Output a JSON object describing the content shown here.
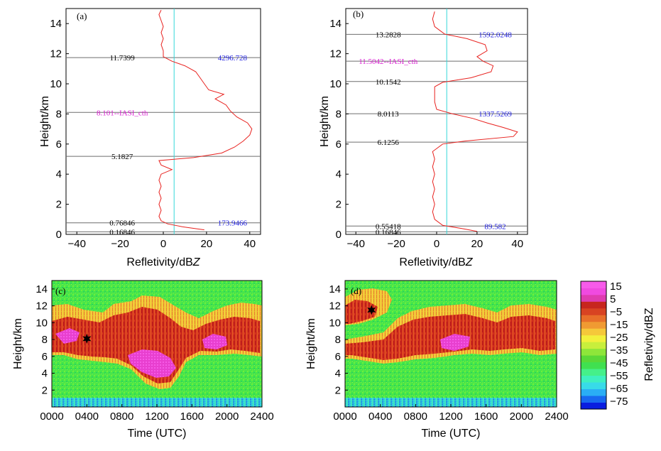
{
  "colors": {
    "profile": "#e8221f",
    "refline": "#35d6d9",
    "hline": "#6e6e6e",
    "ann_black": "#000000",
    "ann_blue": "#1d1de0",
    "ann_magenta": "#d91cd1"
  },
  "chart_data": [
    {
      "type": "line",
      "panel": "(a)",
      "xlabel_main": "Refletivity/dB",
      "xlabel_italic": "Z",
      "ylabel": "Height/km",
      "xlim": [
        -45,
        45
      ],
      "ylim": [
        0,
        15
      ],
      "xticks": [
        "−40",
        "−20",
        "0",
        "20",
        "40"
      ],
      "xtick_values": [
        -40,
        -20,
        0,
        20,
        40
      ],
      "yticks": [
        "0",
        "2",
        "4",
        "6",
        "8",
        "10",
        "12",
        "14"
      ],
      "ytick_values": [
        0,
        2,
        4,
        6,
        8,
        10,
        12,
        14
      ],
      "vline_x": 5,
      "hlines": [
        11.7399,
        8.101,
        5.1827,
        0.76846,
        0.16846
      ],
      "annotations": [
        {
          "text": "11.7399",
          "x": -19,
          "y": 11.74,
          "color": "ann_black"
        },
        {
          "text": "4296.728",
          "x": 32,
          "y": 11.74,
          "color": "ann_blue"
        },
        {
          "text": "8.101--IASI_cth",
          "x": -19,
          "y": 8.1,
          "color": "ann_magenta"
        },
        {
          "text": "5.1827",
          "x": -19,
          "y": 5.18,
          "color": "ann_black"
        },
        {
          "text": "0.76846",
          "x": -19,
          "y": 0.77,
          "color": "ann_black"
        },
        {
          "text": "173.9466",
          "x": 32,
          "y": 0.77,
          "color": "ann_blue"
        },
        {
          "text": "0.16846",
          "x": -19,
          "y": 0.17,
          "color": "ann_black"
        }
      ],
      "profile": {
        "heights": [
          0.3,
          0.5,
          0.7,
          0.9,
          1.2,
          1.6,
          2.0,
          2.4,
          2.8,
          3.2,
          3.6,
          4.0,
          4.3,
          4.6,
          4.9,
          5.1,
          5.4,
          5.8,
          6.2,
          6.6,
          7.0,
          7.4,
          7.8,
          8.2,
          8.6,
          9.0,
          9.3,
          9.6,
          10.0,
          10.4,
          10.8,
          11.2,
          11.5,
          11.8,
          12.2,
          12.6,
          13.0,
          13.4,
          13.8,
          14.2,
          14.6,
          14.9
        ],
        "values": [
          19,
          9,
          2,
          -1,
          -2,
          -1,
          -2,
          -1,
          -2,
          -1,
          -2,
          -1,
          4,
          -1,
          -2,
          14,
          27,
          33,
          37,
          40,
          41,
          39,
          34,
          31,
          29,
          24,
          28,
          21,
          19,
          17,
          15,
          10,
          4,
          0,
          0,
          -1,
          0,
          -1,
          0,
          -1,
          -2,
          -1
        ]
      }
    },
    {
      "type": "line",
      "panel": "(b)",
      "xlabel_main": "Refletivity/dB",
      "xlabel_italic": "Z",
      "ylabel": "Height/km",
      "xlim": [
        -45,
        45
      ],
      "ylim": [
        0,
        15
      ],
      "xticks": [
        "−40",
        "−20",
        "0",
        "20",
        "40"
      ],
      "xtick_values": [
        -40,
        -20,
        0,
        20,
        40
      ],
      "yticks": [
        "0",
        "2",
        "4",
        "6",
        "8",
        "10",
        "12",
        "14"
      ],
      "ytick_values": [
        0,
        2,
        4,
        6,
        8,
        10,
        12,
        14
      ],
      "vline_x": 5,
      "hlines": [
        13.2828,
        11.5042,
        10.1542,
        8.0113,
        6.1256,
        0.55418,
        0.16846
      ],
      "annotations": [
        {
          "text": "13.2828",
          "x": -24,
          "y": 13.28,
          "color": "ann_black"
        },
        {
          "text": "1592.0248",
          "x": 29,
          "y": 13.28,
          "color": "ann_blue"
        },
        {
          "text": "11.5042--IASI_cth",
          "x": -24,
          "y": 11.5,
          "color": "ann_magenta"
        },
        {
          "text": "10.1542",
          "x": -24,
          "y": 10.15,
          "color": "ann_black"
        },
        {
          "text": "8.0113",
          "x": -24,
          "y": 8.01,
          "color": "ann_black"
        },
        {
          "text": "1337.5269",
          "x": 29,
          "y": 8.01,
          "color": "ann_blue"
        },
        {
          "text": "6.1256",
          "x": -24,
          "y": 6.13,
          "color": "ann_black"
        },
        {
          "text": "0.55418",
          "x": -24,
          "y": 0.55,
          "color": "ann_black"
        },
        {
          "text": "89.582",
          "x": 29,
          "y": 0.55,
          "color": "ann_blue"
        },
        {
          "text": "0.16846",
          "x": -24,
          "y": 0.17,
          "color": "ann_black"
        }
      ],
      "profile": {
        "heights": [
          0.2,
          0.4,
          0.6,
          1.0,
          1.5,
          2.0,
          2.5,
          3.0,
          3.5,
          4.0,
          4.5,
          5.0,
          5.5,
          6.0,
          6.2,
          6.5,
          6.8,
          7.1,
          7.4,
          7.7,
          8.0,
          8.3,
          8.8,
          9.3,
          9.8,
          10.1,
          10.4,
          10.8,
          11.2,
          11.5,
          11.8,
          12.2,
          12.6,
          13.0,
          13.3,
          13.8,
          14.3,
          14.8
        ],
        "values": [
          20,
          12,
          3,
          -1,
          -2,
          -1,
          -2,
          -1,
          -2,
          -1,
          -2,
          -1,
          -2,
          3,
          14,
          38,
          40,
          33,
          25,
          18,
          8,
          0,
          -1,
          -1,
          -1,
          3,
          17,
          27,
          28,
          23,
          20,
          25,
          24,
          15,
          4,
          -1,
          -2,
          -1
        ]
      }
    },
    {
      "type": "heatmap",
      "panel": "(c)",
      "xlabel": "Time (UTC)",
      "ylabel": "Height/km",
      "xlim": [
        0,
        2400
      ],
      "ylim": [
        0,
        15
      ],
      "xticks": [
        "0000",
        "0400",
        "0800",
        "1200",
        "1600",
        "2000",
        "2400"
      ],
      "xtick_values": [
        0,
        400,
        800,
        1200,
        1600,
        2000,
        2400
      ],
      "yticks": [
        "2",
        "4",
        "6",
        "8",
        "10",
        "12",
        "14"
      ],
      "ytick_values": [
        2,
        4,
        6,
        8,
        10,
        12,
        14
      ],
      "marker": {
        "x": 400,
        "y": 8.1
      }
    },
    {
      "type": "heatmap",
      "panel": "(d)",
      "xlabel": "Time (UTC)",
      "ylabel": "Height/km",
      "xlim": [
        0,
        2400
      ],
      "ylim": [
        0,
        15
      ],
      "xticks": [
        "0000",
        "0400",
        "0800",
        "1200",
        "1600",
        "2000",
        "2400"
      ],
      "xtick_values": [
        0,
        400,
        800,
        1200,
        1600,
        2000,
        2400
      ],
      "yticks": [
        "2",
        "4",
        "6",
        "8",
        "10",
        "12",
        "14"
      ],
      "ytick_values": [
        2,
        4,
        6,
        8,
        10,
        12,
        14
      ],
      "marker": {
        "x": 300,
        "y": 11.5
      }
    }
  ],
  "colorbar": {
    "label": "Refletivity/dBZ",
    "tick_labels": [
      "15",
      "5",
      "−5",
      "−15",
      "−25",
      "−35",
      "−45",
      "−55",
      "−65",
      "−75"
    ],
    "bands": [
      "#0a1de0",
      "#1869f0",
      "#2aaef5",
      "#38dbe8",
      "#3ef0c0",
      "#45f08a",
      "#40e050",
      "#5ad838",
      "#8ee63a",
      "#c8ef3c",
      "#f2f03c",
      "#f5c83a",
      "#f09a32",
      "#e86f2a",
      "#d84322",
      "#c7261e",
      "#df3cb0",
      "#f04ae0",
      "#f75bea"
    ]
  }
}
